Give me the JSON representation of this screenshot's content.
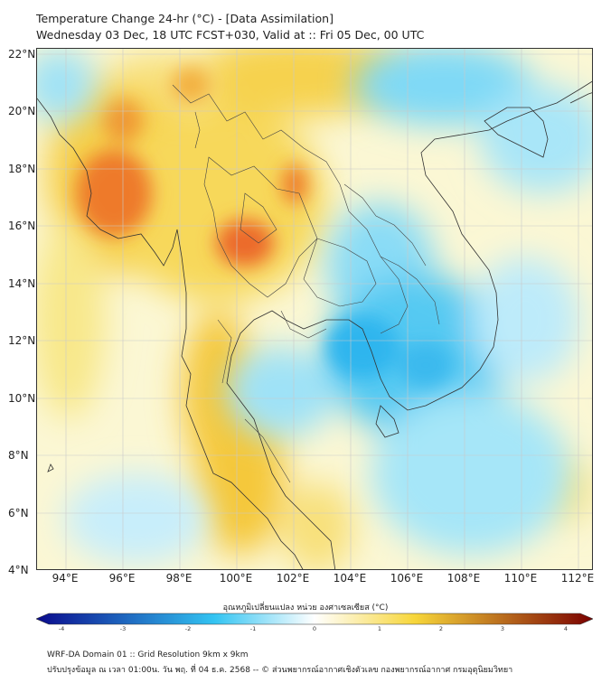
{
  "header": {
    "title": "Temperature Change 24-hr (°C) - [Data Assimilation]",
    "subtitle": "Wednesday 03 Dec, 18 UTC FCST+030, Valid at :: Fri 05 Dec, 00 UTC"
  },
  "map": {
    "lat_labels": [
      "22°N",
      "20°N",
      "18°N",
      "16°N",
      "14°N",
      "12°N",
      "10°N",
      "8°N",
      "6°N",
      "4°N"
    ],
    "lon_labels": [
      "94°E",
      "96°E",
      "98°E",
      "100°E",
      "102°E",
      "104°E",
      "106°E",
      "108°E",
      "110°E",
      "112°E"
    ]
  },
  "colorbar": {
    "title": "อุณหภูมิเปลี่ยนแปลง หน่วย องศาเซลเซียส (°C)",
    "ticks": [
      "-4",
      "-3",
      "-2",
      "-1",
      "0",
      "1",
      "2",
      "3",
      "4"
    ],
    "colors": {
      "cold_end": "#0a0a8c",
      "mid_cold": "#33c4f2",
      "neutral": "#ffffff",
      "mid_warm": "#f7d63a",
      "hot_end": "#7a0000"
    }
  },
  "footer": {
    "line1": "WRF-DA Domain 01 :: Grid Resolution 9km x 9km",
    "line2": "ปรับปรุงข้อมูล ณ เวลา 01:00น. วัน พฤ. ที่ 04 ธ.ค. 2568 -- © ส่วนพยากรณ์อากาศเชิงตัวเลข กองพยากรณ์อากาศ กรมอุตุนิยมวิทยา"
  }
}
